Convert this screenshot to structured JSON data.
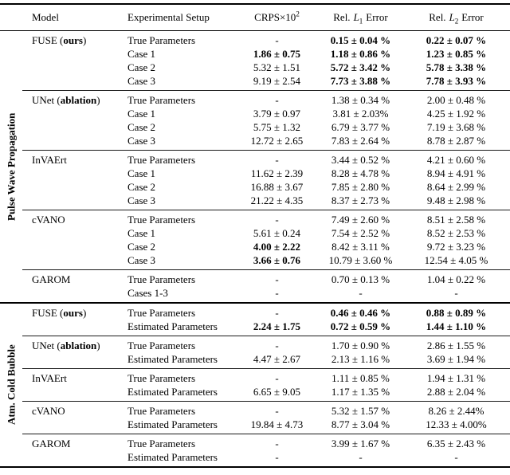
{
  "header": {
    "model": "Model",
    "setup": "Experimental Setup",
    "crps_base": "CRPS×10",
    "crps_sup": "2",
    "rel": "Rel.",
    "l_letter": "L",
    "l1_sub": "1",
    "l2_sub": "2",
    "error": "Error"
  },
  "sections": [
    {
      "label": "Pulse Wave Propagation",
      "groups": [
        {
          "model": [
            {
              "t": "FUSE (",
              "b": false
            },
            {
              "t": "ours",
              "b": true
            },
            {
              "t": ")",
              "b": false
            }
          ],
          "rows": [
            {
              "setup": "True Parameters",
              "crps": {
                "t": "-",
                "b": false
              },
              "l1": {
                "t": "0.15 ± 0.04 %",
                "b": true
              },
              "l2": {
                "t": "0.22 ± 0.07 %",
                "b": true
              }
            },
            {
              "setup": "Case 1",
              "crps": {
                "t": "1.86 ± 0.75",
                "b": true
              },
              "l1": {
                "t": "1.18 ± 0.86 %",
                "b": true
              },
              "l2": {
                "t": "1.23 ± 0.85 %",
                "b": true
              }
            },
            {
              "setup": "Case 2",
              "crps": {
                "t": "5.32 ± 1.51",
                "b": false
              },
              "l1": {
                "t": "5.72 ± 3.42 %",
                "b": true
              },
              "l2": {
                "t": "5.78 ± 3.38 %",
                "b": true
              }
            },
            {
              "setup": "Case 3",
              "crps": {
                "t": "9.19 ± 2.54",
                "b": false
              },
              "l1": {
                "t": "7.73 ± 3.88 %",
                "b": true
              },
              "l2": {
                "t": "7.78 ± 3.93 %",
                "b": true
              }
            }
          ]
        },
        {
          "model": [
            {
              "t": "UNet (",
              "b": false
            },
            {
              "t": "ablation",
              "b": true
            },
            {
              "t": ")",
              "b": false
            }
          ],
          "rows": [
            {
              "setup": "True Parameters",
              "crps": {
                "t": "-",
                "b": false
              },
              "l1": {
                "t": "1.38 ± 0.34 %",
                "b": false
              },
              "l2": {
                "t": "2.00 ± 0.48 %",
                "b": false
              }
            },
            {
              "setup": "Case 1",
              "crps": {
                "t": "3.79 ± 0.97",
                "b": false
              },
              "l1": {
                "t": "3.81 ± 2.03%",
                "b": false
              },
              "l2": {
                "t": "4.25 ± 1.92 %",
                "b": false
              }
            },
            {
              "setup": "Case 2",
              "crps": {
                "t": "5.75 ± 1.32",
                "b": false
              },
              "l1": {
                "t": "6.79 ± 3.77 %",
                "b": false
              },
              "l2": {
                "t": "7.19 ± 3.68 %",
                "b": false
              }
            },
            {
              "setup": "Case 3",
              "crps": {
                "t": "12.72 ± 2.65",
                "b": false
              },
              "l1": {
                "t": "7.83 ± 2.64 %",
                "b": false
              },
              "l2": {
                "t": "8.78 ± 2.87 %",
                "b": false
              }
            }
          ]
        },
        {
          "model": [
            {
              "t": "InVAErt",
              "b": false
            }
          ],
          "rows": [
            {
              "setup": "True Parameters",
              "crps": {
                "t": "-",
                "b": false
              },
              "l1": {
                "t": "3.44 ± 0.52 %",
                "b": false
              },
              "l2": {
                "t": "4.21 ± 0.60 %",
                "b": false
              }
            },
            {
              "setup": "Case 1",
              "crps": {
                "t": "11.62 ± 2.39",
                "b": false
              },
              "l1": {
                "t": "8.28 ± 4.78 %",
                "b": false
              },
              "l2": {
                "t": "8.94 ± 4.91 %",
                "b": false
              }
            },
            {
              "setup": "Case 2",
              "crps": {
                "t": "16.88 ± 3.67",
                "b": false
              },
              "l1": {
                "t": "7.85 ± 2.80 %",
                "b": false
              },
              "l2": {
                "t": "8.64 ± 2.99 %",
                "b": false
              }
            },
            {
              "setup": "Case 3",
              "crps": {
                "t": "21.22 ± 4.35",
                "b": false
              },
              "l1": {
                "t": "8.37 ± 2.73 %",
                "b": false
              },
              "l2": {
                "t": "9.48 ± 2.98 %",
                "b": false
              }
            }
          ]
        },
        {
          "model": [
            {
              "t": "cVANO",
              "b": false
            }
          ],
          "rows": [
            {
              "setup": "True Parameters",
              "crps": {
                "t": "-",
                "b": false
              },
              "l1": {
                "t": "7.49 ± 2.60 %",
                "b": false
              },
              "l2": {
                "t": "8.51 ± 2.58 %",
                "b": false
              }
            },
            {
              "setup": "Case 1",
              "crps": {
                "t": "5.61 ± 0.24",
                "b": false
              },
              "l1": {
                "t": "7.54 ± 2.52 %",
                "b": false
              },
              "l2": {
                "t": "8.52 ± 2.53 %",
                "b": false
              }
            },
            {
              "setup": "Case 2",
              "crps": {
                "t": "4.00 ± 2.22",
                "b": true
              },
              "l1": {
                "t": "8.42 ± 3.11 %",
                "b": false
              },
              "l2": {
                "t": "9.72 ± 3.23 %",
                "b": false
              }
            },
            {
              "setup": "Case 3",
              "crps": {
                "t": "3.66 ± 0.76",
                "b": true
              },
              "l1": {
                "t": "10.79 ± 3.60 %",
                "b": false
              },
              "l2": {
                "t": "12.54 ± 4.05 %",
                "b": false
              }
            }
          ]
        },
        {
          "model": [
            {
              "t": "GAROM",
              "b": false
            }
          ],
          "rows": [
            {
              "setup": "True Parameters",
              "crps": {
                "t": "-",
                "b": false
              },
              "l1": {
                "t": "0.70 ± 0.13 %",
                "b": false
              },
              "l2": {
                "t": "1.04 ± 0.22 %",
                "b": false
              }
            },
            {
              "setup": "Cases 1-3",
              "crps": {
                "t": "-",
                "b": false
              },
              "l1": {
                "t": "-",
                "b": false
              },
              "l2": {
                "t": "-",
                "b": false
              }
            }
          ]
        }
      ]
    },
    {
      "label": "Atm. Cold Bubble",
      "groups": [
        {
          "model": [
            {
              "t": "FUSE (",
              "b": false
            },
            {
              "t": "ours",
              "b": true
            },
            {
              "t": ")",
              "b": false
            }
          ],
          "rows": [
            {
              "setup": "True Parameters",
              "crps": {
                "t": "-",
                "b": false
              },
              "l1": {
                "t": "0.46 ± 0.46 %",
                "b": true
              },
              "l2": {
                "t": "0.88 ± 0.89 %",
                "b": true
              }
            },
            {
              "setup": "Estimated Parameters",
              "crps": {
                "t": "2.24 ± 1.75",
                "b": true
              },
              "l1": {
                "t": "0.72 ± 0.59 %",
                "b": true
              },
              "l2": {
                "t": "1.44 ± 1.10 %",
                "b": true
              }
            }
          ]
        },
        {
          "model": [
            {
              "t": "UNet (",
              "b": false
            },
            {
              "t": "ablation",
              "b": true
            },
            {
              "t": ")",
              "b": false
            }
          ],
          "rows": [
            {
              "setup": "True Parameters",
              "crps": {
                "t": "-",
                "b": false
              },
              "l1": {
                "t": "1.70 ± 0.90 %",
                "b": false
              },
              "l2": {
                "t": "2.86 ± 1.55 %",
                "b": false
              }
            },
            {
              "setup": "Estimated Parameters",
              "crps": {
                "t": "4.47 ± 2.67",
                "b": false
              },
              "l1": {
                "t": "2.13 ± 1.16 %",
                "b": false
              },
              "l2": {
                "t": "3.69 ± 1.94 %",
                "b": false
              }
            }
          ]
        },
        {
          "model": [
            {
              "t": "InVAErt",
              "b": false
            }
          ],
          "rows": [
            {
              "setup": "True Parameters",
              "crps": {
                "t": "-",
                "b": false
              },
              "l1": {
                "t": "1.11 ± 0.85 %",
                "b": false
              },
              "l2": {
                "t": "1.94 ± 1.31 %",
                "b": false
              }
            },
            {
              "setup": "Estimated Parameters",
              "crps": {
                "t": "6.65 ± 9.05",
                "b": false
              },
              "l1": {
                "t": "1.17 ± 1.35 %",
                "b": false
              },
              "l2": {
                "t": "2.88 ± 2.04 %",
                "b": false
              }
            }
          ]
        },
        {
          "model": [
            {
              "t": "cVANO",
              "b": false
            }
          ],
          "rows": [
            {
              "setup": "True Parameters",
              "crps": {
                "t": "-",
                "b": false
              },
              "l1": {
                "t": "5.32 ± 1.57 %",
                "b": false
              },
              "l2": {
                "t": "8.26 ± 2.44%",
                "b": false
              }
            },
            {
              "setup": "Estimated Parameters",
              "crps": {
                "t": "19.84 ± 4.73",
                "b": false
              },
              "l1": {
                "t": "8.77 ± 3.04 %",
                "b": false
              },
              "l2": {
                "t": "12.33 ± 4.00%",
                "b": false
              }
            }
          ]
        },
        {
          "model": [
            {
              "t": "GAROM",
              "b": false
            }
          ],
          "rows": [
            {
              "setup": "True Parameters",
              "crps": {
                "t": "-",
                "b": false
              },
              "l1": {
                "t": "3.99 ± 1.67 %",
                "b": false
              },
              "l2": {
                "t": "6.35 ± 2.43 %",
                "b": false
              }
            },
            {
              "setup": "Estimated Parameters",
              "crps": {
                "t": "-",
                "b": false
              },
              "l1": {
                "t": "-",
                "b": false
              },
              "l2": {
                "t": "-",
                "b": false
              }
            }
          ]
        }
      ]
    }
  ]
}
